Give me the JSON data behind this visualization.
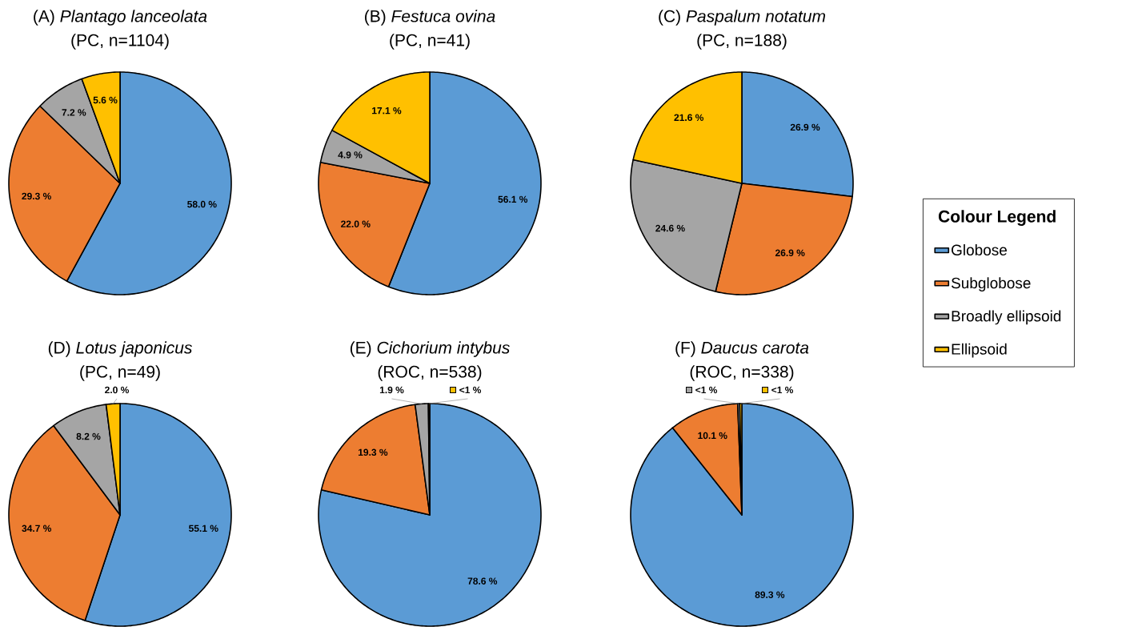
{
  "chart_data": [
    {
      "type": "pie",
      "title": "(A) *Plantago lanceolata*",
      "subtitle": "(PC, n=1104)",
      "categories": [
        null,
        null,
        null,
        null
      ],
      "values": [
        58.0,
        29.3,
        7.2,
        5.6
      ],
      "colors": [
        "#5b9bd5",
        "#ed7d31",
        "#a5a5a5",
        "#ffc000"
      ],
      "value_labels": [
        "58.0 %",
        "29.3 %",
        "7.2 %",
        "5.6 %"
      ]
    },
    {
      "type": "pie",
      "title": "(B) *Festuca ovina*",
      "subtitle": "(PC, n=41)",
      "categories": [
        null,
        null,
        null,
        null
      ],
      "values": [
        56.1,
        22.0,
        4.9,
        17.1
      ],
      "colors": [
        "#5b9bd5",
        "#ed7d31",
        "#a5a5a5",
        "#ffc000"
      ],
      "value_labels": [
        "56.1 %",
        "22.0 %",
        "4.9 %",
        "17.1 %"
      ]
    },
    {
      "type": "pie",
      "title": "(C) *Paspalum notatum*",
      "subtitle": "(PC, n=188)",
      "categories": [
        "Globose",
        "Subglobose",
        "Broadly ellipsoid",
        "Ellipsoid"
      ],
      "values": [
        26.9,
        26.9,
        24.6,
        21.6
      ],
      "colors": [
        "#5b9bd5",
        "#ed7d31",
        "#a5a5a5",
        "#ffc000"
      ],
      "value_labels": [
        "26.9 %",
        "26.9 %",
        "24.6 %",
        "21.6 %"
      ],
      "legend": "right",
      "legend_title": "Colour Legend"
    },
    {
      "type": "pie",
      "title": "(D) *Lotus japonicus*",
      "subtitle": "(PC, n=49)",
      "categories": [
        null,
        null,
        null,
        null
      ],
      "values": [
        55.1,
        34.7,
        8.2,
        2.0
      ],
      "colors": [
        "#5b9bd5",
        "#ed7d31",
        "#a5a5a5",
        "#ffc000"
      ],
      "value_labels": [
        "55.1 %",
        "34.7 %",
        "8.2 %",
        "2.0 %"
      ]
    },
    {
      "type": "pie",
      "title": "(E) *Cichorium intybus*",
      "subtitle": "(ROC, n=538)",
      "categories": [
        null,
        null,
        null,
        null
      ],
      "values": [
        78.6,
        19.3,
        1.9,
        0.2
      ],
      "colors": [
        "#5b9bd5",
        "#ed7d31",
        "#a5a5a5",
        "#ffc000"
      ],
      "value_labels": [
        "78.6 %",
        "19.3 %",
        "1.9 %",
        "<1 %"
      ]
    },
    {
      "type": "pie",
      "title": "(F) *Daucus carota*",
      "subtitle": "(ROC, n=338)",
      "categories": [
        null,
        null,
        null,
        null
      ],
      "values": [
        89.3,
        10.1,
        0.3,
        0.3
      ],
      "colors": [
        "#5b9bd5",
        "#ed7d31",
        "#a5a5a5",
        "#ffc000"
      ],
      "value_labels": [
        "89.3 %",
        "10.1 %",
        "<1 %",
        "<1 %"
      ]
    }
  ]
}
